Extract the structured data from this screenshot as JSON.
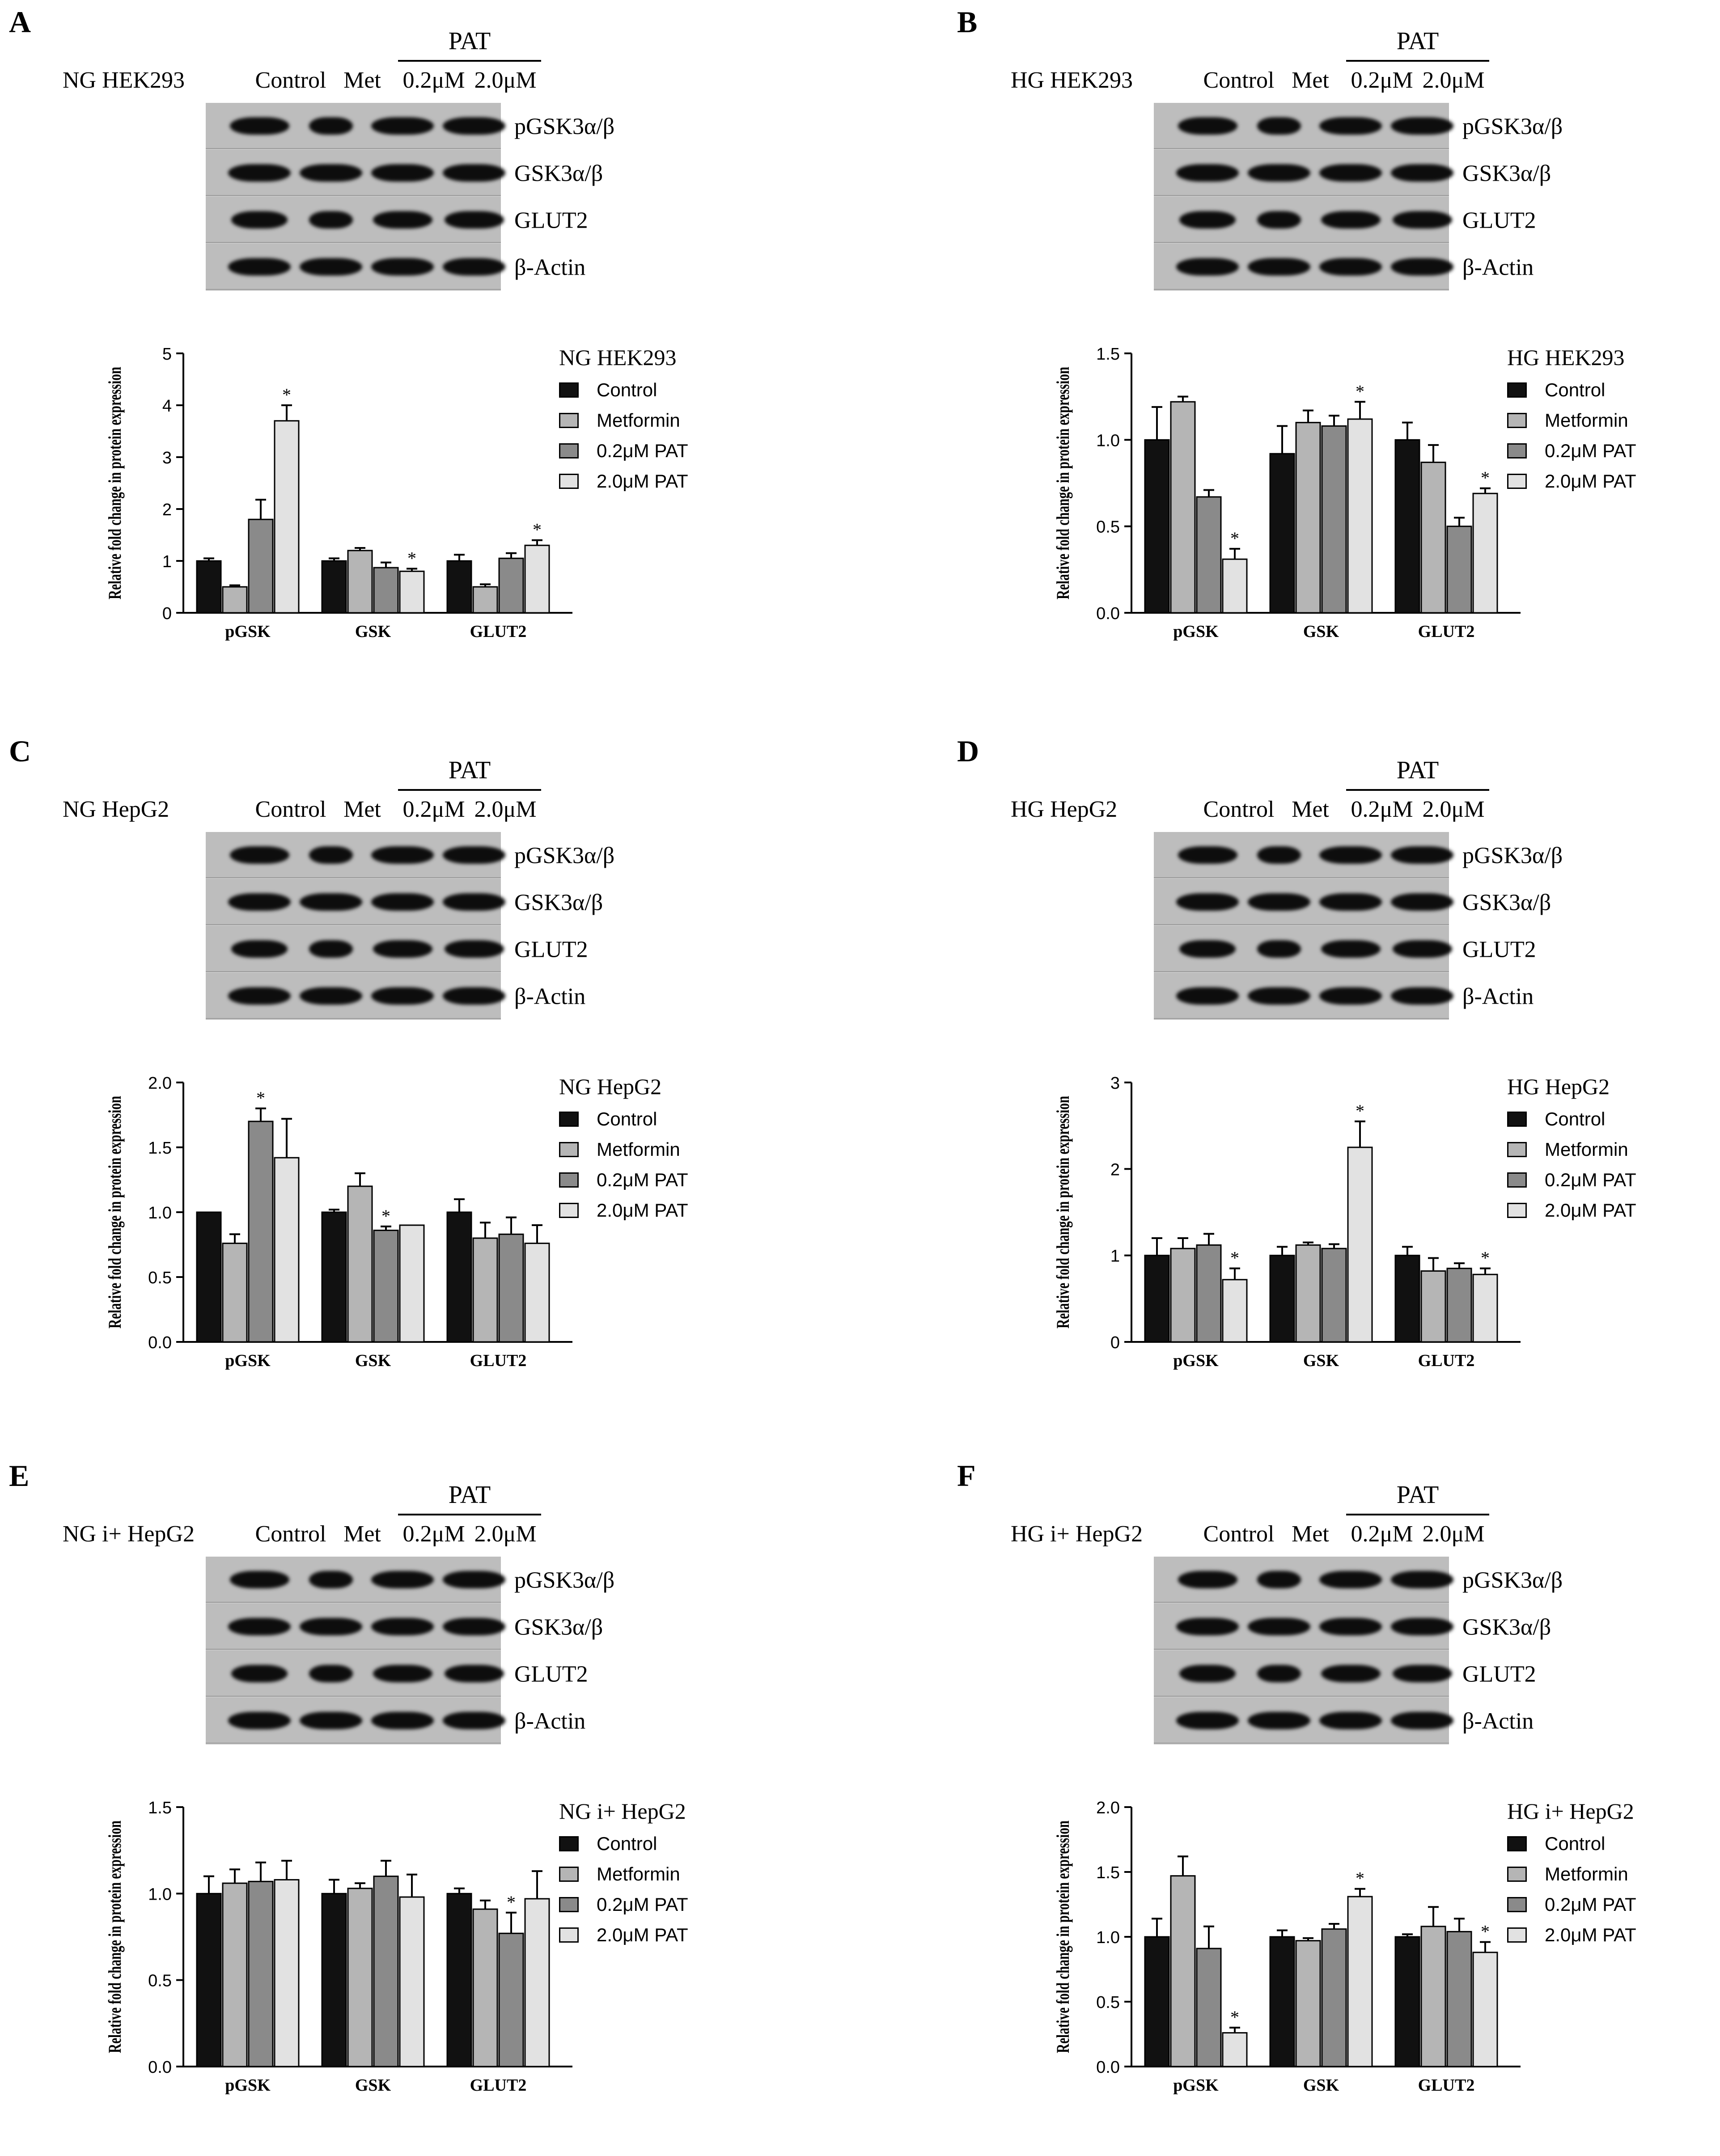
{
  "lanes": [
    "Control",
    "Met",
    "0.2μM",
    "2.0μM"
  ],
  "pat_label": "PAT",
  "series_colors": [
    "#111111",
    "#b5b5b5",
    "#8a8a8a",
    "#e2e2e2"
  ],
  "panels": [
    {
      "id": "A",
      "cell_line": "NG HEK293",
      "proteins": [
        "pGSK3α/β",
        "GSK3α/β",
        "GLUT2",
        "β-Actin"
      ],
      "legend_title": "NG HEK293",
      "chart_data": {
        "type": "bar",
        "title": "NG HEK293",
        "ylabel": "Relative fold change in protein expression",
        "xlabel": "",
        "categories": [
          "pGSK",
          "GSK",
          "GLUT2"
        ],
        "ylim": [
          0,
          5
        ],
        "yticks": [
          "0",
          "1",
          "2",
          "3",
          "4",
          "5"
        ],
        "series": [
          {
            "name": "Control",
            "values": [
              1.0,
              1.0,
              1.0
            ],
            "errors": [
              0.05,
              0.05,
              0.12
            ]
          },
          {
            "name": "Metformin",
            "values": [
              0.5,
              1.2,
              0.5
            ],
            "errors": [
              0.03,
              0.05,
              0.05
            ]
          },
          {
            "name": "0.2μM PAT",
            "values": [
              1.8,
              0.87,
              1.05
            ],
            "errors": [
              0.38,
              0.1,
              0.1
            ]
          },
          {
            "name": "2.0μM PAT",
            "values": [
              3.7,
              0.8,
              1.3
            ],
            "errors": [
              0.3,
              0.05,
              0.1
            ]
          }
        ],
        "significance": [
          [
            0,
            3
          ],
          [
            1,
            3
          ],
          [
            2,
            3
          ]
        ]
      }
    },
    {
      "id": "B",
      "cell_line": "HG HEK293",
      "proteins": [
        "pGSK3α/β",
        "GSK3α/β",
        "GLUT2",
        "β-Actin"
      ],
      "legend_title": "HG HEK293",
      "chart_data": {
        "type": "bar",
        "title": "HG HEK293",
        "ylabel": "Relative fold change in protein expression",
        "xlabel": "",
        "categories": [
          "pGSK",
          "GSK",
          "GLUT2"
        ],
        "ylim": [
          0,
          1.5
        ],
        "yticks": [
          "0.0",
          "0.5",
          "1.0",
          "1.5"
        ],
        "series": [
          {
            "name": "Control",
            "values": [
              1.0,
              0.92,
              1.0
            ],
            "errors": [
              0.19,
              0.16,
              0.1
            ]
          },
          {
            "name": "Metformin",
            "values": [
              1.22,
              1.1,
              0.87
            ],
            "errors": [
              0.03,
              0.07,
              0.1
            ]
          },
          {
            "name": "0.2μM PAT",
            "values": [
              0.67,
              1.08,
              0.5
            ],
            "errors": [
              0.04,
              0.06,
              0.05
            ]
          },
          {
            "name": "2.0μM PAT",
            "values": [
              0.31,
              1.12,
              0.69
            ],
            "errors": [
              0.06,
              0.1,
              0.03
            ]
          }
        ],
        "significance": [
          [
            0,
            3
          ],
          [
            1,
            3
          ],
          [
            2,
            3
          ]
        ]
      }
    },
    {
      "id": "C",
      "cell_line": "NG HepG2",
      "proteins": [
        "pGSK3α/β",
        "GSK3α/β",
        "GLUT2",
        "β-Actin"
      ],
      "legend_title": "NG HepG2",
      "chart_data": {
        "type": "bar",
        "title": "NG HepG2",
        "ylabel": "Relative fold change in protein expression",
        "xlabel": "",
        "categories": [
          "pGSK",
          "GSK",
          "GLUT2"
        ],
        "ylim": [
          0,
          2.0
        ],
        "yticks": [
          "0.0",
          "0.5",
          "1.0",
          "1.5",
          "2.0"
        ],
        "series": [
          {
            "name": "Control",
            "values": [
              1.0,
              1.0,
              1.0
            ],
            "errors": [
              0.0,
              0.02,
              0.1
            ]
          },
          {
            "name": "Metformin",
            "values": [
              0.76,
              1.2,
              0.8
            ],
            "errors": [
              0.07,
              0.1,
              0.12
            ]
          },
          {
            "name": "0.2μM PAT",
            "values": [
              1.7,
              0.86,
              0.83
            ],
            "errors": [
              0.1,
              0.03,
              0.13
            ]
          },
          {
            "name": "2.0μM PAT",
            "values": [
              1.42,
              0.9,
              0.76
            ],
            "errors": [
              0.3,
              0.0,
              0.14
            ]
          }
        ],
        "significance": [
          [
            0,
            2
          ],
          [
            1,
            2
          ]
        ]
      }
    },
    {
      "id": "D",
      "cell_line": "HG HepG2",
      "proteins": [
        "pGSK3α/β",
        "GSK3α/β",
        "GLUT2",
        "β-Actin"
      ],
      "legend_title": "HG HepG2",
      "chart_data": {
        "type": "bar",
        "title": "HG HepG2",
        "ylabel": "Relative fold change in protein expression",
        "xlabel": "",
        "categories": [
          "pGSK",
          "GSK",
          "GLUT2"
        ],
        "ylim": [
          0,
          3
        ],
        "yticks": [
          "0",
          "1",
          "2",
          "3"
        ],
        "series": [
          {
            "name": "Control",
            "values": [
              1.0,
              1.0,
              1.0
            ],
            "errors": [
              0.2,
              0.1,
              0.1
            ]
          },
          {
            "name": "Metformin",
            "values": [
              1.08,
              1.12,
              0.82
            ],
            "errors": [
              0.12,
              0.03,
              0.15
            ]
          },
          {
            "name": "0.2μM PAT",
            "values": [
              1.12,
              1.08,
              0.85
            ],
            "errors": [
              0.13,
              0.05,
              0.06
            ]
          },
          {
            "name": "2.0μM PAT",
            "values": [
              0.72,
              2.25,
              0.78
            ],
            "errors": [
              0.13,
              0.3,
              0.07
            ]
          }
        ],
        "significance": [
          [
            0,
            3
          ],
          [
            1,
            3
          ],
          [
            2,
            3
          ]
        ]
      }
    },
    {
      "id": "E",
      "cell_line": "NG i+ HepG2",
      "proteins": [
        "pGSK3α/β",
        "GSK3α/β",
        "GLUT2",
        "β-Actin"
      ],
      "legend_title": "NG i+ HepG2",
      "chart_data": {
        "type": "bar",
        "title": "NG i+ HepG2",
        "ylabel": "Relative fold change in protein expression",
        "xlabel": "",
        "categories": [
          "pGSK",
          "GSK",
          "GLUT2"
        ],
        "ylim": [
          0,
          1.5
        ],
        "yticks": [
          "0.0",
          "0.5",
          "1.0",
          "1.5"
        ],
        "series": [
          {
            "name": "Control",
            "values": [
              1.0,
              1.0,
              1.0
            ],
            "errors": [
              0.1,
              0.08,
              0.03
            ]
          },
          {
            "name": "Metformin",
            "values": [
              1.06,
              1.03,
              0.91
            ],
            "errors": [
              0.08,
              0.03,
              0.05
            ]
          },
          {
            "name": "0.2μM PAT",
            "values": [
              1.07,
              1.1,
              0.77
            ],
            "errors": [
              0.11,
              0.09,
              0.12
            ]
          },
          {
            "name": "2.0μM PAT",
            "values": [
              1.08,
              0.98,
              0.97
            ],
            "errors": [
              0.11,
              0.13,
              0.16
            ]
          }
        ],
        "significance": [
          [
            2,
            2
          ]
        ]
      }
    },
    {
      "id": "F",
      "cell_line": "HG i+ HepG2",
      "proteins": [
        "pGSK3α/β",
        "GSK3α/β",
        "GLUT2",
        "β-Actin"
      ],
      "legend_title": "HG i+ HepG2",
      "chart_data": {
        "type": "bar",
        "title": "HG i+ HepG2",
        "ylabel": "Relative fold change in protein expression",
        "xlabel": "",
        "categories": [
          "pGSK",
          "GSK",
          "GLUT2"
        ],
        "ylim": [
          0,
          2.0
        ],
        "yticks": [
          "0.0",
          "0.5",
          "1.0",
          "1.5",
          "2.0"
        ],
        "series": [
          {
            "name": "Control",
            "values": [
              1.0,
              1.0,
              1.0
            ],
            "errors": [
              0.14,
              0.05,
              0.02
            ]
          },
          {
            "name": "Metformin",
            "values": [
              1.47,
              0.97,
              1.08
            ],
            "errors": [
              0.15,
              0.02,
              0.15
            ]
          },
          {
            "name": "0.2μM PAT",
            "values": [
              0.91,
              1.06,
              1.04
            ],
            "errors": [
              0.17,
              0.04,
              0.1
            ]
          },
          {
            "name": "2.0μM PAT",
            "values": [
              0.26,
              1.31,
              0.88
            ],
            "errors": [
              0.04,
              0.06,
              0.08
            ]
          }
        ],
        "significance": [
          [
            0,
            3
          ],
          [
            1,
            3
          ],
          [
            2,
            3
          ]
        ]
      }
    }
  ]
}
